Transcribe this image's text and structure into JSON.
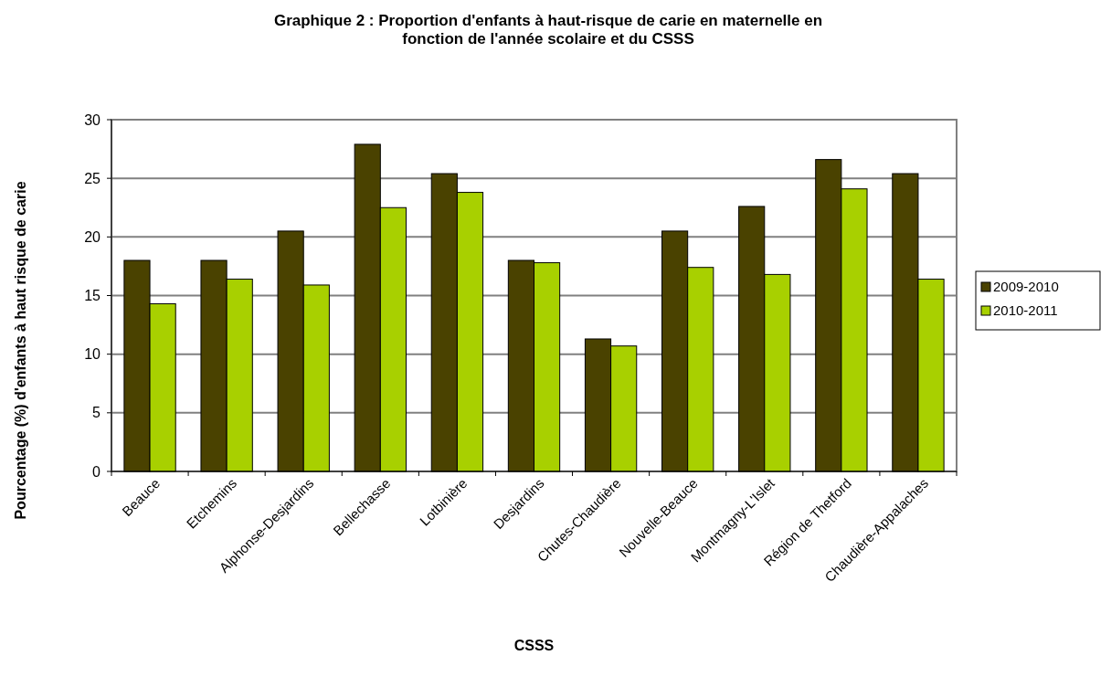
{
  "chart_data": {
    "type": "bar",
    "title": "Graphique 2 : Proportion d'enfants à haut-risque de carie en maternelle en fonction de l'année scolaire et du CSSS",
    "xlabel": "CSSS",
    "ylabel": "Pourcentage (%) d'enfants à haut risque de carie",
    "categories": [
      "Beauce",
      "Etchemins",
      "Alphonse-Desjardins",
      "Bellechasse",
      "Lotbinière",
      "Desjardins",
      "Chutes-Chaudière",
      "Nouvelle-Beauce",
      "Montmagny-L'Islet",
      "Région de Thetford",
      "Chaudière-Appalaches"
    ],
    "series": [
      {
        "name": "2009-2010",
        "color": "#4a4200",
        "values": [
          18.0,
          18.0,
          20.5,
          27.9,
          25.4,
          18.0,
          11.3,
          20.5,
          22.6,
          26.6,
          25.4
        ]
      },
      {
        "name": "2010-2011",
        "color": "#a8d000",
        "values": [
          14.3,
          16.4,
          15.9,
          22.5,
          23.8,
          17.8,
          10.7,
          17.4,
          16.8,
          24.1,
          16.4
        ]
      }
    ],
    "ylim": [
      0,
      30
    ],
    "yticks": [
      0,
      5,
      10,
      15,
      20,
      25,
      30
    ],
    "grid": "y",
    "legend": "right"
  }
}
